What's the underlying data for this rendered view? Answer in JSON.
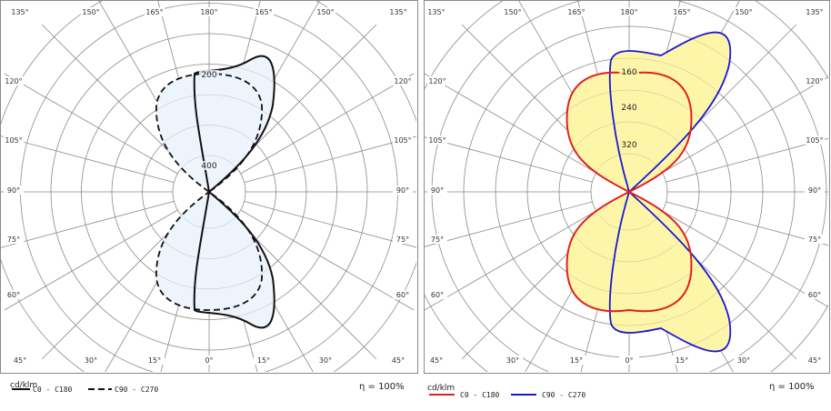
{
  "panels": [
    {
      "id": "left",
      "style": "monochrome",
      "unit": "cd/klm",
      "efficiency": "η = 100%",
      "angle_labels_top": [
        "135°",
        "150°",
        "165°",
        "180°",
        "165°",
        "150°",
        "135°"
      ],
      "angle_labels_side": [
        "120°",
        "105°",
        "90°",
        "75°",
        "60°"
      ],
      "angle_labels_bottom": [
        "45°",
        "30°",
        "15°",
        "0°",
        "15°",
        "30°",
        "45°"
      ],
      "ring_labels": [
        "400",
        "200"
      ],
      "legend": [
        {
          "label": "C0 - C180",
          "line": "solid"
        },
        {
          "label": "C90 - C270",
          "line": "dashed"
        }
      ],
      "colors": {
        "c0": "#111111",
        "c90": "#111111",
        "fill": "#eef4fb"
      }
    },
    {
      "id": "right",
      "style": "color",
      "unit": "cd/klm",
      "efficiency": "η = 100%",
      "angle_labels_top": [
        "135°",
        "150°",
        "165°",
        "180°",
        "165°",
        "150°",
        "135°"
      ],
      "angle_labels_side": [
        "120°",
        "105°",
        "90°",
        "75°",
        "60°"
      ],
      "angle_labels_bottom": [
        "45°",
        "30°",
        "15°",
        "0°",
        "15°",
        "30°",
        "45°"
      ],
      "ring_labels": [
        "320",
        "240",
        "160"
      ],
      "legend": [
        {
          "label": "C0 - C180",
          "line": "solid"
        },
        {
          "label": "C90 - C270",
          "line": "solid"
        }
      ],
      "colors": {
        "c0": "#e02020",
        "c90": "#1a1ad0",
        "fill": "#fdf6a8"
      }
    }
  ]
}
